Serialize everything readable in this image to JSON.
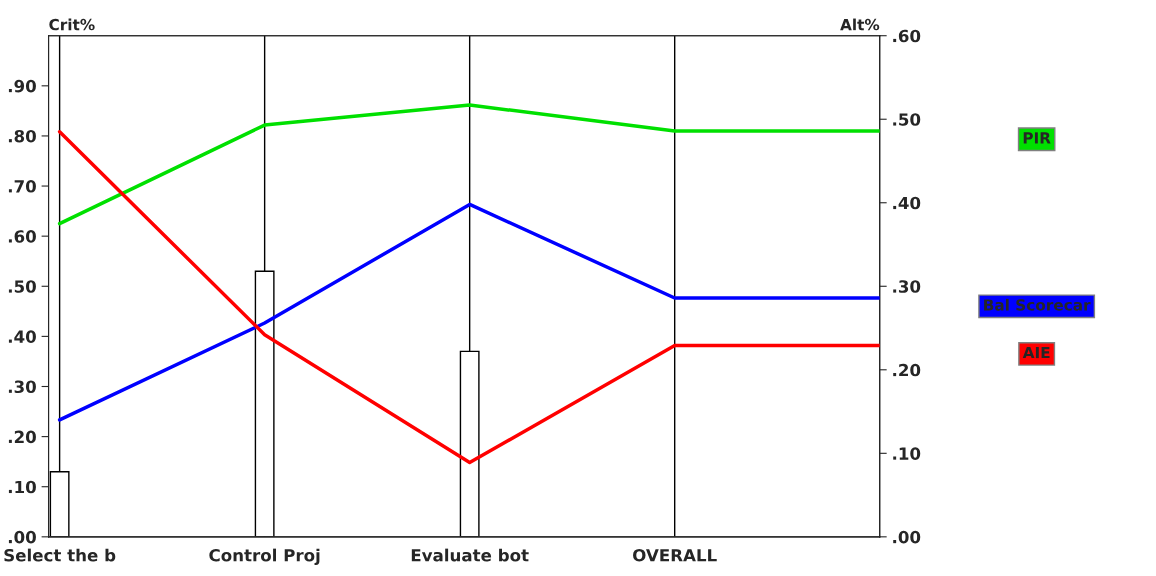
{
  "chart_data": {
    "type": "line",
    "ylabel": "Crit%",
    "y2label": "Alt%",
    "categories": [
      "Select the b",
      "Control Proj",
      "Evaluate bot",
      "OVERALL",
      null
    ],
    "ylim": [
      0,
      1
    ],
    "yticks": [
      {
        "value": 0,
        "label": ".00"
      },
      {
        "value": 0.1,
        "label": ".10"
      },
      {
        "value": 0.2,
        "label": ".20"
      },
      {
        "value": 0.3,
        "label": ".30"
      },
      {
        "value": 0.4,
        "label": ".40"
      },
      {
        "value": 0.5,
        "label": ".50"
      },
      {
        "value": 0.6,
        "label": ".60"
      },
      {
        "value": 0.7,
        "label": ".70"
      },
      {
        "value": 0.8,
        "label": ".80"
      },
      {
        "value": 0.9,
        "label": ".90"
      }
    ],
    "y2lim": [
      0,
      0.6
    ],
    "y2ticks": [
      {
        "value": 0,
        "label": ".00"
      },
      {
        "value": 0.1,
        "label": ".10"
      },
      {
        "value": 0.2,
        "label": ".20"
      },
      {
        "value": 0.3,
        "label": ".30"
      },
      {
        "value": 0.4,
        "label": ".40"
      },
      {
        "value": 0.5,
        "label": ".50"
      },
      {
        "value": 0.6,
        "label": ".60"
      }
    ],
    "grid": "x",
    "legend": "right",
    "marker": "none",
    "line_style": "solid",
    "series": [
      {
        "type": "bar",
        "color": "#ffffff",
        "axis": "y",
        "values": [
          0.13,
          0.53,
          0.37,
          null,
          null
        ]
      },
      {
        "name": "PIR",
        "color": "#00e000",
        "axis": "y2",
        "values": [
          0.375,
          0.493,
          0.517,
          0.486,
          0.486
        ]
      },
      {
        "name": "Bal Scorecar",
        "color": "#0000ff",
        "axis": "y2",
        "values": [
          0.14,
          0.256,
          0.398,
          0.286,
          0.286
        ]
      },
      {
        "name": "AIE",
        "color": "#ff0000",
        "axis": "y2",
        "values": [
          0.485,
          0.242,
          0.089,
          0.229,
          0.229
        ]
      }
    ]
  }
}
